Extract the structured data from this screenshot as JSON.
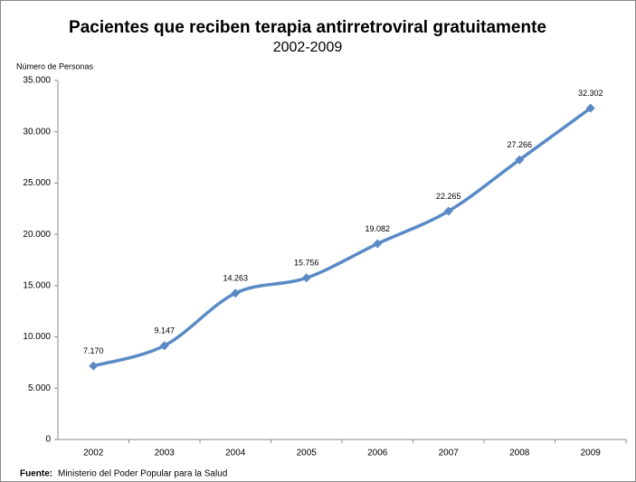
{
  "chart_data": {
    "type": "line",
    "title": "Pacientes que reciben terapia antirretroviral gratuitamente",
    "subtitle": "2002-2009",
    "y_label": "Número de Personas",
    "source_label": "Fuente:",
    "source": "Ministerio del Poder Popular para la Salud",
    "categories": [
      "2002",
      "2003",
      "2004",
      "2005",
      "2006",
      "2007",
      "2008",
      "2009"
    ],
    "series": [
      {
        "name": "Pacientes",
        "color": "#5a8ac6",
        "values": [
          7170,
          9147,
          14263,
          15756,
          19082,
          22265,
          27266,
          32302
        ],
        "value_labels": [
          "7.170",
          "9.147",
          "14.263",
          "15.756",
          "19.082",
          "22.265",
          "27.266",
          "32.302"
        ]
      }
    ],
    "ylim": [
      0,
      35000
    ],
    "yticks": [
      0,
      {
        "value": 5000,
        "label": "5.000"
      },
      {
        "value": 10000,
        "label": "10.000"
      },
      {
        "value": 15000,
        "label": "15.000"
      },
      {
        "value": 20000,
        "label": "20.000"
      },
      {
        "value": 25000,
        "label": "25.000"
      },
      {
        "value": 30000,
        "label": "30.000"
      },
      {
        "value": 35000,
        "label": "35.000"
      }
    ],
    "grid": false,
    "smooth": true
  }
}
